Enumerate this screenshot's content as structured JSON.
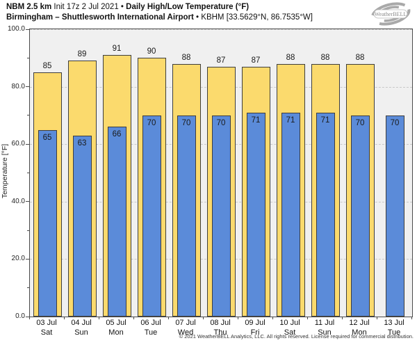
{
  "header": {
    "title1_bold1": "NBM 2.5 km",
    "title1_reg1": " Init 17z 2 Jul 2021 ",
    "title1_sep": "•",
    "title1_bold2": " Daily High/Low Temperature (°F)",
    "title2_bold1": "Birmingham – Shuttlesworth International Airport ",
    "title2_sep": "•",
    "title2_reg1": " KBHM [33.5629°N, 86.7535°W]",
    "logo_text": "WeatherBELL"
  },
  "chart_data": {
    "type": "bar",
    "title": "NBM 2.5 km Init 17z 2 Jul 2021 • Daily High/Low Temperature (°F) — Birmingham – Shuttlesworth International Airport • KBHM [33.5629°N, 86.7535°W]",
    "xlabel": "",
    "ylabel": "Temperature [°F]",
    "ylim": [
      0,
      100
    ],
    "yticks": [
      0,
      20,
      40,
      60,
      80,
      100
    ],
    "ytick_labels": [
      "0.0",
      "20.0",
      "40.0",
      "60.0",
      "80.0",
      "100.0"
    ],
    "grid": "horizontal-dashed",
    "legend_position": "none",
    "categories": [
      {
        "date": "03 Jul",
        "day": "Sat"
      },
      {
        "date": "04 Jul",
        "day": "Sun"
      },
      {
        "date": "05 Jul",
        "day": "Mon"
      },
      {
        "date": "06 Jul",
        "day": "Tue"
      },
      {
        "date": "07 Jul",
        "day": "Wed"
      },
      {
        "date": "08 Jul",
        "day": "Thu"
      },
      {
        "date": "09 Jul",
        "day": "Fri"
      },
      {
        "date": "10 Jul",
        "day": "Sat"
      },
      {
        "date": "11 Jul",
        "day": "Sun"
      },
      {
        "date": "12 Jul",
        "day": "Mon"
      },
      {
        "date": "13 Jul",
        "day": "Tue"
      }
    ],
    "series": [
      {
        "name": "Daily High",
        "color": "#fbda6d",
        "values": [
          85,
          89,
          91,
          90,
          88,
          87,
          87,
          88,
          88,
          88,
          null
        ]
      },
      {
        "name": "Daily Low",
        "color": "#5b8bd9",
        "values": [
          65,
          63,
          66,
          70,
          70,
          70,
          71,
          71,
          71,
          70,
          70
        ]
      }
    ],
    "bar_border_color": "#3d3d3d",
    "plot_bg_color": "#f0f0f0"
  },
  "footer": {
    "copyright": "© 2021 WeatherBELL Analytics, LLC. All rights reserved. License required for commercial distribution."
  }
}
